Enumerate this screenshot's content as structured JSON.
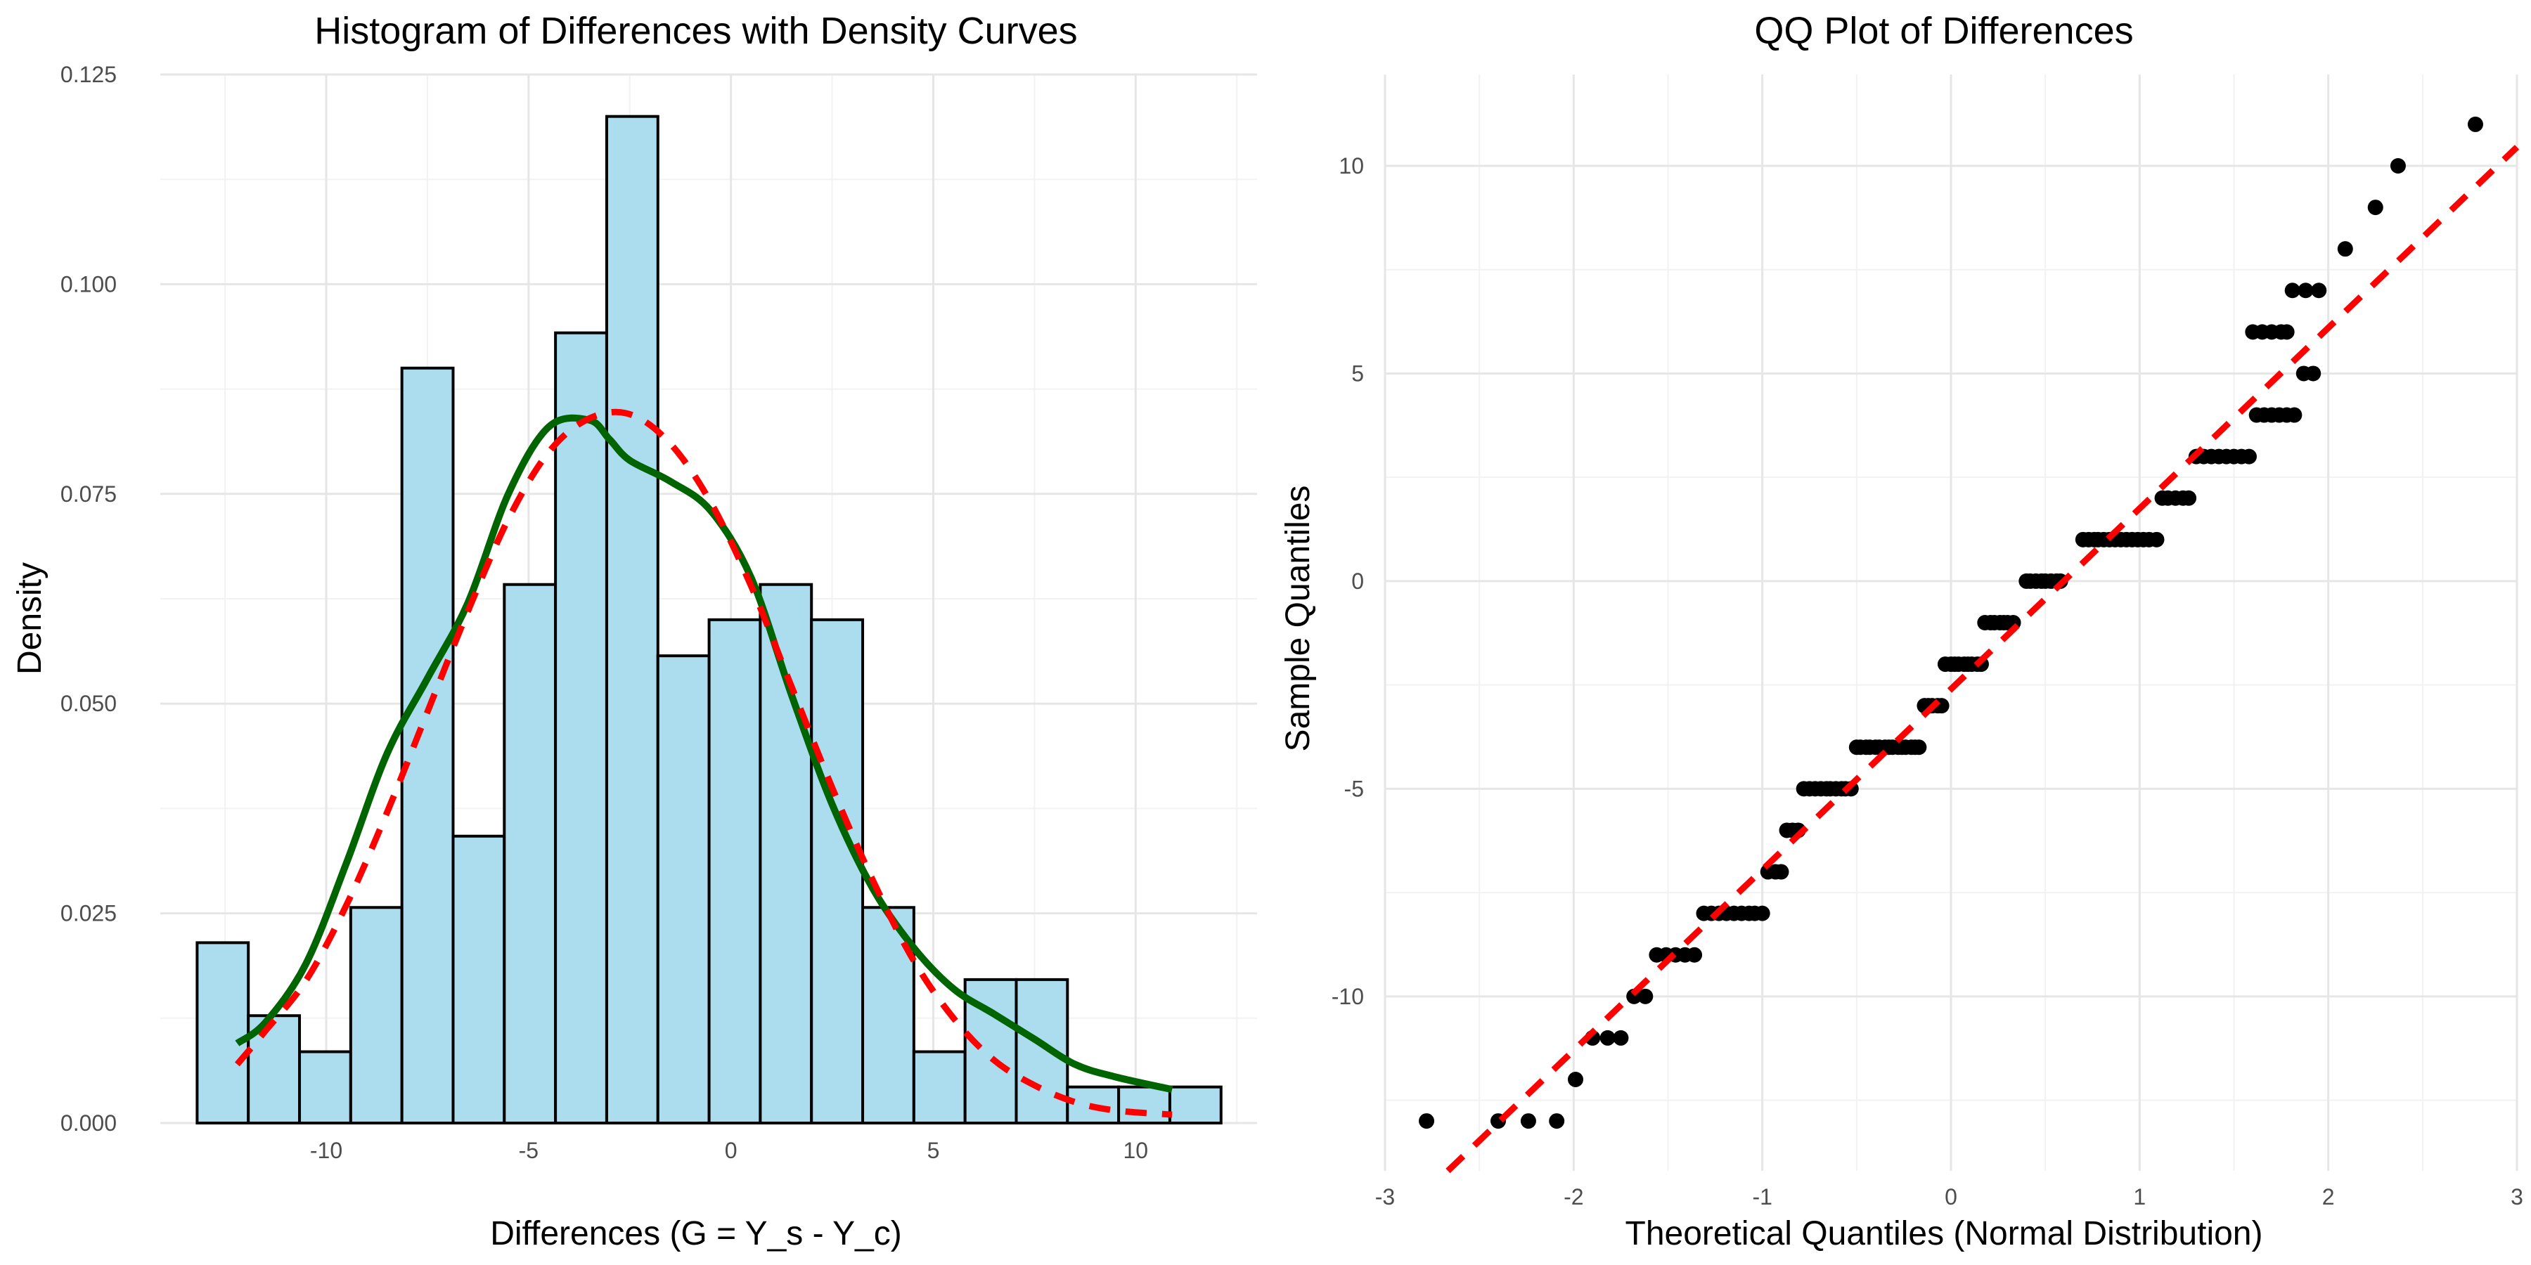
{
  "chart_data": [
    {
      "type": "bar",
      "title": "Histogram of Differences with Density Curves",
      "xlabel": "Differences (G = Y_s - Y_c)",
      "ylabel": "Density",
      "xlim": [
        -14.1,
        13.0
      ],
      "ylim": [
        0,
        0.125
      ],
      "xticks": [
        -10,
        -5,
        0,
        5,
        10
      ],
      "xtick_labels": [
        "-10",
        "-5",
        "0",
        "5",
        "10"
      ],
      "yticks": [
        0,
        0.025,
        0.05,
        0.075,
        0.1,
        0.125
      ],
      "ytick_labels": [
        "0.000",
        "0.025",
        "0.050",
        "0.075",
        "0.100",
        "0.125"
      ],
      "grid": true,
      "bin_edges": [
        -13.19,
        -11.925,
        -10.66,
        -9.395,
        -8.13,
        -6.865,
        -5.6,
        -4.335,
        -3.07,
        -1.805,
        -0.54,
        0.725,
        1.99,
        3.255,
        4.52,
        5.785,
        7.05,
        8.315,
        9.58,
        10.845,
        12.11
      ],
      "values": [
        0.0215,
        0.0128,
        0.0085,
        0.0257,
        0.09,
        0.0342,
        0.0642,
        0.0942,
        0.12,
        0.0557,
        0.06,
        0.0642,
        0.06,
        0.0257,
        0.0085,
        0.0171,
        0.0171,
        0.0043,
        0.0043,
        0.0043
      ],
      "bar_fill": "#abddef",
      "bar_outline": "#000000",
      "series": [
        {
          "kind": "kernel-density",
          "color": "#006400",
          "style": "solid",
          "x": [
            -12.2,
            -11.5,
            -10.5,
            -9.5,
            -8.5,
            -7.5,
            -6.5,
            -5.5,
            -4.5,
            -3.5,
            -3.0,
            -2.5,
            -1.5,
            -0.5,
            0.5,
            1.5,
            2.5,
            3.5,
            4.5,
            5.5,
            6.5,
            7.5,
            8.5,
            9.5,
            10.9
          ],
          "y": [
            0.0095,
            0.012,
            0.019,
            0.031,
            0.044,
            0.053,
            0.062,
            0.075,
            0.083,
            0.0838,
            0.0815,
            0.079,
            0.0765,
            0.073,
            0.065,
            0.051,
            0.038,
            0.028,
            0.021,
            0.016,
            0.013,
            0.01,
            0.007,
            0.0055,
            0.004
          ]
        },
        {
          "kind": "normal-density",
          "color": "#ff0000",
          "style": "dashed",
          "x": [
            -12.2,
            -11.5,
            -10.5,
            -9.5,
            -8.5,
            -7.5,
            -6.5,
            -5.5,
            -4.5,
            -3.5,
            -2.5,
            -1.5,
            -0.5,
            0.5,
            1.5,
            2.5,
            3.5,
            4.5,
            5.5,
            6.5,
            7.5,
            8.5,
            9.5,
            10.9
          ],
          "y": [
            0.007,
            0.011,
            0.017,
            0.026,
            0.037,
            0.049,
            0.061,
            0.072,
            0.08,
            0.084,
            0.0845,
            0.081,
            0.074,
            0.064,
            0.052,
            0.04,
            0.029,
            0.0195,
            0.0125,
            0.0075,
            0.0045,
            0.0025,
            0.0015,
            0.001
          ]
        }
      ]
    },
    {
      "type": "scatter",
      "title": "QQ Plot of Differences",
      "xlabel": "Theoretical Quantiles (Normal Distribution)",
      "ylabel": "Sample Quantiles",
      "xlim": [
        -3.0,
        3.0
      ],
      "ylim": [
        -14.2,
        12.2
      ],
      "xticks": [
        -3,
        -2,
        -1,
        0,
        1,
        2,
        3
      ],
      "xtick_labels": [
        "-3",
        "-2",
        "-1",
        "0",
        "1",
        "2",
        "3"
      ],
      "yticks": [
        -10,
        -5,
        0,
        5,
        10
      ],
      "ytick_labels": [
        "-10",
        "-5",
        "0",
        "5",
        "10"
      ],
      "grid": true,
      "point_color": "#000000",
      "reference_line": {
        "color": "#ff0000",
        "style": "dashed",
        "slope": 4.35,
        "intercept": -2.6
      },
      "points": [
        [
          -2.78,
          -13
        ],
        [
          -2.4,
          -13
        ],
        [
          -2.24,
          -13
        ],
        [
          -2.09,
          -13
        ],
        [
          -1.99,
          -12
        ],
        [
          -1.9,
          -11
        ],
        [
          -1.82,
          -11
        ],
        [
          -1.75,
          -11
        ],
        [
          -1.68,
          -10
        ],
        [
          -1.62,
          -10
        ],
        [
          -1.56,
          -9
        ],
        [
          -1.51,
          -9
        ],
        [
          -1.46,
          -9
        ],
        [
          -1.41,
          -9
        ],
        [
          -1.36,
          -9
        ],
        [
          -1.31,
          -8
        ],
        [
          -1.27,
          -8
        ],
        [
          -1.23,
          -8
        ],
        [
          -1.19,
          -8
        ],
        [
          -1.15,
          -8
        ],
        [
          -1.11,
          -8
        ],
        [
          -1.07,
          -8
        ],
        [
          -1.04,
          -8
        ],
        [
          -1.0,
          -8
        ],
        [
          -0.97,
          -7
        ],
        [
          -0.93,
          -7
        ],
        [
          -0.9,
          -7
        ],
        [
          -0.87,
          -6
        ],
        [
          -0.84,
          -6
        ],
        [
          -0.81,
          -6
        ],
        [
          -0.78,
          -5
        ],
        [
          -0.75,
          -5
        ],
        [
          -0.72,
          -5
        ],
        [
          -0.69,
          -5
        ],
        [
          -0.66,
          -5
        ],
        [
          -0.64,
          -5
        ],
        [
          -0.61,
          -5
        ],
        [
          -0.58,
          -5
        ],
        [
          -0.56,
          -5
        ],
        [
          -0.53,
          -5
        ],
        [
          -0.5,
          -4
        ],
        [
          -0.48,
          -4
        ],
        [
          -0.45,
          -4
        ],
        [
          -0.43,
          -4
        ],
        [
          -0.4,
          -4
        ],
        [
          -0.38,
          -4
        ],
        [
          -0.35,
          -4
        ],
        [
          -0.33,
          -4
        ],
        [
          -0.31,
          -4
        ],
        [
          -0.28,
          -4
        ],
        [
          -0.26,
          -4
        ],
        [
          -0.24,
          -4
        ],
        [
          -0.21,
          -4
        ],
        [
          -0.19,
          -4
        ],
        [
          -0.17,
          -4
        ],
        [
          -0.14,
          -3
        ],
        [
          -0.12,
          -3
        ],
        [
          -0.1,
          -3
        ],
        [
          -0.07,
          -3
        ],
        [
          -0.05,
          -3
        ],
        [
          -0.03,
          -2
        ],
        [
          0.0,
          -2
        ],
        [
          0.02,
          -2
        ],
        [
          0.04,
          -2
        ],
        [
          0.07,
          -2
        ],
        [
          0.09,
          -2
        ],
        [
          0.11,
          -2
        ],
        [
          0.14,
          -2
        ],
        [
          0.16,
          -2
        ],
        [
          0.18,
          -1
        ],
        [
          0.21,
          -1
        ],
        [
          0.23,
          -1
        ],
        [
          0.26,
          -1
        ],
        [
          0.28,
          -1
        ],
        [
          0.3,
          -1
        ],
        [
          0.33,
          -1
        ],
        [
          0.4,
          0
        ],
        [
          0.42,
          0
        ],
        [
          0.45,
          0
        ],
        [
          0.48,
          0
        ],
        [
          0.5,
          0
        ],
        [
          0.53,
          0
        ],
        [
          0.56,
          0
        ],
        [
          0.58,
          0
        ],
        [
          0.7,
          1
        ],
        [
          0.73,
          1
        ],
        [
          0.76,
          1
        ],
        [
          0.78,
          1
        ],
        [
          0.81,
          1
        ],
        [
          0.84,
          1
        ],
        [
          0.87,
          1
        ],
        [
          0.9,
          1
        ],
        [
          0.93,
          1
        ],
        [
          0.96,
          1
        ],
        [
          0.99,
          1
        ],
        [
          1.02,
          1
        ],
        [
          1.05,
          1
        ],
        [
          1.09,
          1
        ],
        [
          1.12,
          2
        ],
        [
          1.15,
          2
        ],
        [
          1.19,
          2
        ],
        [
          1.23,
          2
        ],
        [
          1.26,
          2
        ],
        [
          1.3,
          3
        ],
        [
          1.34,
          3
        ],
        [
          1.38,
          3
        ],
        [
          1.42,
          3
        ],
        [
          1.46,
          3
        ],
        [
          1.5,
          3
        ],
        [
          1.54,
          3
        ],
        [
          1.58,
          3
        ],
        [
          1.62,
          4
        ],
        [
          1.66,
          4
        ],
        [
          1.7,
          4
        ],
        [
          1.74,
          4
        ],
        [
          1.78,
          4
        ],
        [
          1.82,
          4
        ],
        [
          1.87,
          5
        ],
        [
          1.92,
          5
        ],
        [
          1.6,
          6
        ],
        [
          1.65,
          6
        ],
        [
          1.7,
          6
        ],
        [
          1.75,
          6
        ],
        [
          1.78,
          6
        ],
        [
          1.81,
          7
        ],
        [
          1.88,
          7
        ],
        [
          1.95,
          7
        ],
        [
          2.09,
          8
        ],
        [
          2.25,
          9
        ],
        [
          2.37,
          10
        ],
        [
          2.78,
          11
        ]
      ]
    }
  ]
}
